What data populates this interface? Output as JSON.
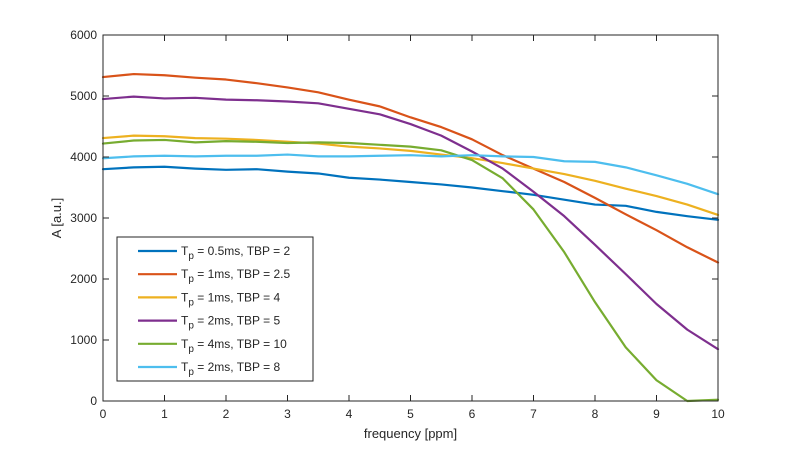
{
  "chart_data": {
    "type": "line",
    "title": "",
    "xlabel": "frequency [ppm]",
    "ylabel": "A [a.u.]",
    "xlim": [
      0,
      10
    ],
    "ylim": [
      0,
      6000
    ],
    "xticks": [
      0,
      1,
      2,
      3,
      4,
      5,
      6,
      7,
      8,
      9,
      10
    ],
    "yticks": [
      0,
      1000,
      2000,
      3000,
      4000,
      5000,
      6000
    ],
    "xtick_labels": [
      "0",
      "1",
      "2",
      "3",
      "4",
      "5",
      "6",
      "7",
      "8",
      "9",
      "10"
    ],
    "ytick_labels": [
      "0",
      "1000",
      "2000",
      "3000",
      "4000",
      "5000",
      "6000"
    ],
    "grid": false,
    "legend_position": "bottom-left",
    "x": [
      0,
      0.5,
      1,
      1.5,
      2,
      2.5,
      3,
      3.5,
      4,
      4.5,
      5,
      5.5,
      6,
      6.5,
      7,
      7.5,
      8,
      8.5,
      9,
      9.5,
      10
    ],
    "series": [
      {
        "name": "Tp = 0.5ms, TBP = 2",
        "legend_prefix": "T",
        "legend_sub": "p",
        "legend_suffix": " = 0.5ms, TBP = 2",
        "color": "#0072BD",
        "values": [
          3800,
          3830,
          3840,
          3810,
          3790,
          3800,
          3760,
          3730,
          3660,
          3630,
          3590,
          3550,
          3500,
          3440,
          3380,
          3300,
          3220,
          3200,
          3100,
          3030,
          2970
        ]
      },
      {
        "name": "Tp = 1ms, TBP = 2.5",
        "legend_prefix": "T",
        "legend_sub": "p",
        "legend_suffix": " = 1ms, TBP = 2.5",
        "color": "#D95319",
        "values": [
          5310,
          5360,
          5340,
          5300,
          5270,
          5210,
          5140,
          5060,
          4940,
          4830,
          4650,
          4490,
          4290,
          4030,
          3810,
          3590,
          3330,
          3060,
          2800,
          2520,
          2270
        ]
      },
      {
        "name": "Tp = 1ms, TBP = 4",
        "legend_prefix": "T",
        "legend_sub": "p",
        "legend_suffix": " = 1ms, TBP = 4",
        "color": "#EDB120",
        "values": [
          4310,
          4350,
          4340,
          4310,
          4300,
          4280,
          4250,
          4220,
          4170,
          4140,
          4100,
          4040,
          3980,
          3900,
          3810,
          3720,
          3610,
          3480,
          3360,
          3220,
          3050
        ]
      },
      {
        "name": "Tp = 2ms, TBP = 5",
        "legend_prefix": "T",
        "legend_sub": "p",
        "legend_suffix": " = 2ms, TBP = 5",
        "color": "#7E2F8E",
        "values": [
          4950,
          4990,
          4960,
          4970,
          4940,
          4930,
          4910,
          4880,
          4790,
          4700,
          4540,
          4350,
          4090,
          3810,
          3430,
          3030,
          2560,
          2080,
          1590,
          1170,
          850
        ]
      },
      {
        "name": "Tp = 4ms, TBP = 10",
        "legend_prefix": "T",
        "legend_sub": "p",
        "legend_suffix": " = 4ms, TBP = 10",
        "color": "#77AC30",
        "values": [
          4220,
          4270,
          4280,
          4240,
          4260,
          4250,
          4230,
          4240,
          4230,
          4200,
          4170,
          4110,
          3950,
          3650,
          3140,
          2440,
          1620,
          880,
          340,
          0,
          20
        ]
      },
      {
        "name": "Tp = 2ms, TBP = 8",
        "legend_prefix": "T",
        "legend_sub": "p",
        "legend_suffix": " = 2ms, TBP = 8",
        "color": "#4DBEEE",
        "values": [
          3980,
          4010,
          4020,
          4010,
          4020,
          4020,
          4040,
          4010,
          4010,
          4020,
          4030,
          4010,
          4030,
          4010,
          4000,
          3930,
          3920,
          3830,
          3700,
          3560,
          3390
        ]
      }
    ]
  }
}
